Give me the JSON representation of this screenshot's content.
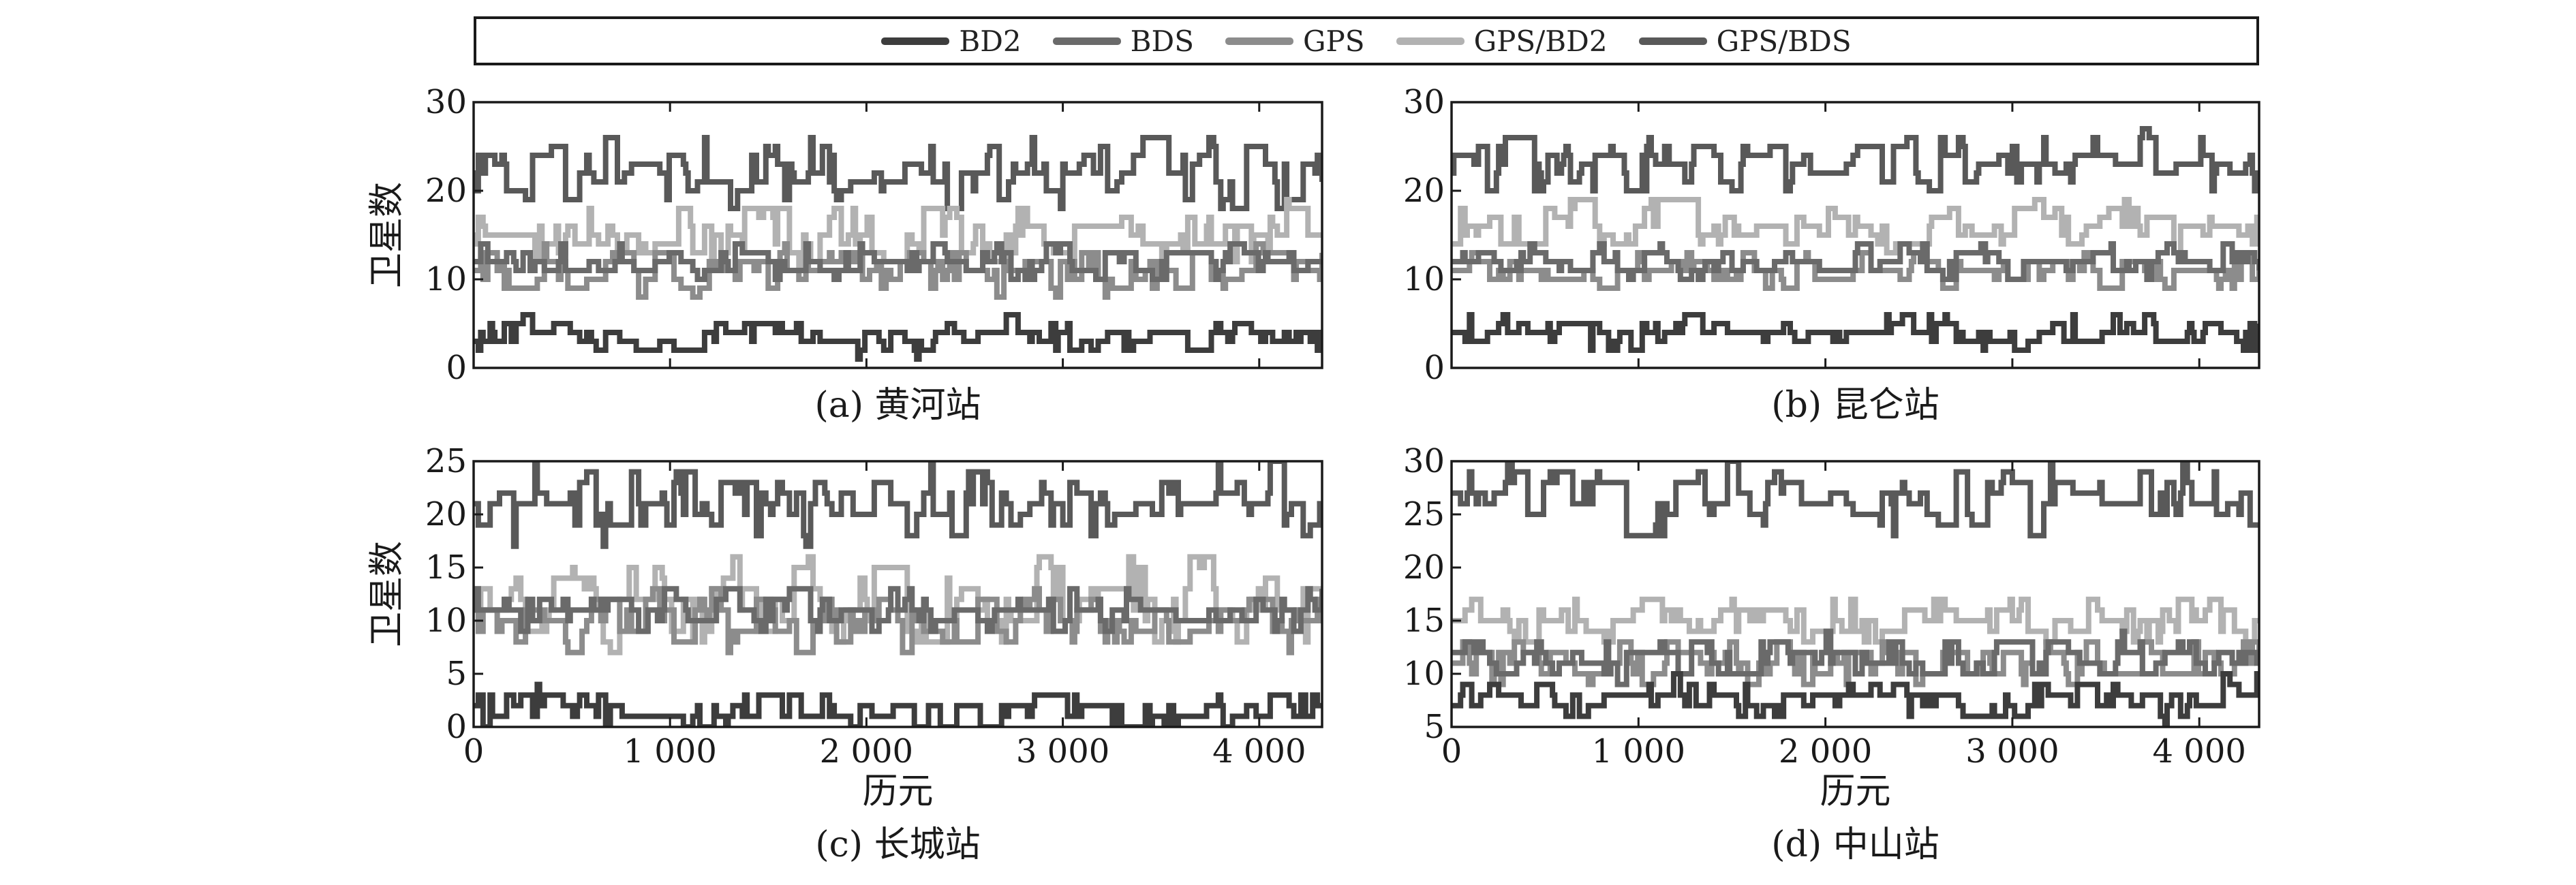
{
  "legend": [
    {
      "name": "BD2",
      "color": "#3d3d3d"
    },
    {
      "name": "BDS",
      "color": "#6a6a6a"
    },
    {
      "name": "GPS",
      "color": "#8c8c8c"
    },
    {
      "name": "GPS/BD2",
      "color": "#b2b2b2"
    },
    {
      "name": "GPS/BDS",
      "color": "#595959"
    }
  ],
  "chart_data": [
    {
      "type": "line",
      "caption": "(a) 黄河站",
      "ylabel": "卫星数",
      "xlabel": "",
      "xlim": [
        0,
        4320
      ],
      "ylim": [
        0,
        30
      ],
      "yticks": [
        0,
        10,
        20,
        30
      ],
      "xticks": [
        0,
        1000,
        2000,
        3000,
        4000
      ],
      "xtick_labels": [],
      "series": [
        {
          "name": "GPS/BDS",
          "color": "#595959",
          "base": 22,
          "amp": 3,
          "period": 28,
          "seed": 11
        },
        {
          "name": "GPS/BD2",
          "color": "#b2b2b2",
          "base": 15,
          "amp": 2.5,
          "period": 45,
          "seed": 12
        },
        {
          "name": "GPS",
          "color": "#8c8c8c",
          "base": 11,
          "amp": 2,
          "period": 30,
          "seed": 13
        },
        {
          "name": "BDS",
          "color": "#6a6a6a",
          "base": 12,
          "amp": 1.5,
          "period": 32,
          "seed": 14
        },
        {
          "name": "BD2",
          "color": "#3d3d3d",
          "base": 3.5,
          "amp": 1.5,
          "period": 120,
          "seed": 15
        }
      ]
    },
    {
      "type": "line",
      "caption": "(b) 昆仑站",
      "ylabel": "",
      "xlabel": "",
      "xlim": [
        0,
        4320
      ],
      "ylim": [
        0,
        30
      ],
      "yticks": [
        0,
        10,
        20,
        30
      ],
      "xticks": [
        0,
        1000,
        2000,
        3000,
        4000
      ],
      "xtick_labels": [],
      "series": [
        {
          "name": "GPS/BDS",
          "color": "#595959",
          "base": 23,
          "amp": 2.5,
          "period": 26,
          "seed": 21
        },
        {
          "name": "GPS/BD2",
          "color": "#b2b2b2",
          "base": 16,
          "amp": 2,
          "period": 50,
          "seed": 22
        },
        {
          "name": "GPS",
          "color": "#8c8c8c",
          "base": 11,
          "amp": 1.5,
          "period": 30,
          "seed": 23
        },
        {
          "name": "BDS",
          "color": "#6a6a6a",
          "base": 12,
          "amp": 1.5,
          "period": 34,
          "seed": 24
        },
        {
          "name": "BD2",
          "color": "#3d3d3d",
          "base": 4,
          "amp": 1.5,
          "period": 110,
          "seed": 25
        }
      ]
    },
    {
      "type": "line",
      "caption": "(c) 长城站",
      "ylabel": "卫星数",
      "xlabel": "历元",
      "xlim": [
        0,
        4320
      ],
      "ylim": [
        0,
        25
      ],
      "yticks": [
        0,
        5,
        10,
        15,
        20,
        25
      ],
      "xticks": [
        0,
        1000,
        2000,
        3000,
        4000
      ],
      "xtick_labels": [
        "0",
        "1 000",
        "2 000",
        "3 000",
        "4 000"
      ],
      "series": [
        {
          "name": "GPS/BDS",
          "color": "#595959",
          "base": 21,
          "amp": 2.5,
          "period": 25,
          "seed": 31
        },
        {
          "name": "GPS/BD2",
          "color": "#b2b2b2",
          "base": 12,
          "amp": 3,
          "period": 40,
          "seed": 32
        },
        {
          "name": "GPS",
          "color": "#8c8c8c",
          "base": 10,
          "amp": 2,
          "period": 28,
          "seed": 33
        },
        {
          "name": "BDS",
          "color": "#6a6a6a",
          "base": 11,
          "amp": 1.5,
          "period": 30,
          "seed": 34
        },
        {
          "name": "BD2",
          "color": "#3d3d3d",
          "base": 1.5,
          "amp": 1.5,
          "period": 130,
          "seed": 35
        }
      ]
    },
    {
      "type": "line",
      "caption": "(d) 中山站",
      "ylabel": "",
      "xlabel": "历元",
      "xlim": [
        0,
        4320
      ],
      "ylim": [
        5,
        30
      ],
      "yticks": [
        5,
        10,
        15,
        20,
        25,
        30
      ],
      "xticks": [
        0,
        1000,
        2000,
        3000,
        4000
      ],
      "xtick_labels": [
        "0",
        "1 000",
        "2 000",
        "3 000",
        "4 000"
      ],
      "series": [
        {
          "name": "GPS/BDS",
          "color": "#595959",
          "base": 26.5,
          "amp": 2.5,
          "period": 24,
          "seed": 41
        },
        {
          "name": "GPS/BD2",
          "color": "#b2b2b2",
          "base": 15,
          "amp": 1.5,
          "period": 48,
          "seed": 42
        },
        {
          "name": "GPS",
          "color": "#8c8c8c",
          "base": 11,
          "amp": 1.5,
          "period": 28,
          "seed": 43
        },
        {
          "name": "BDS",
          "color": "#6a6a6a",
          "base": 11.5,
          "amp": 1.5,
          "period": 32,
          "seed": 44
        },
        {
          "name": "BD2",
          "color": "#3d3d3d",
          "base": 7.5,
          "amp": 1.5,
          "period": 100,
          "seed": 45
        }
      ]
    }
  ]
}
